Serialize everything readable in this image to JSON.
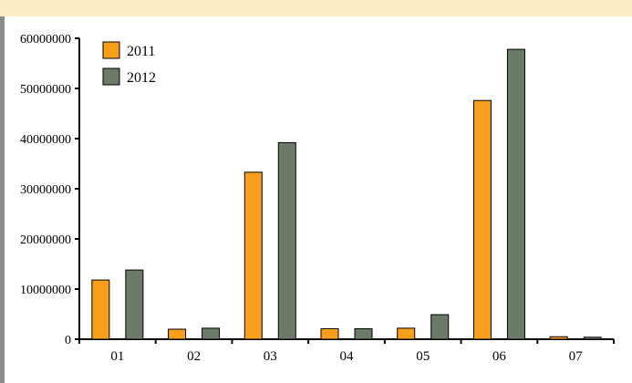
{
  "chart_data": {
    "type": "bar",
    "categories": [
      "01",
      "02",
      "03",
      "04",
      "05",
      "06",
      "07"
    ],
    "series": [
      {
        "name": "2011",
        "color": "#f79f1a",
        "values": [
          11800000,
          2000000,
          33300000,
          2100000,
          2200000,
          47600000,
          500000
        ]
      },
      {
        "name": "2012",
        "color": "#6b7b68",
        "values": [
          13800000,
          2200000,
          39200000,
          2100000,
          4900000,
          57800000,
          400000
        ]
      }
    ],
    "yticks": [
      "0",
      "10000000",
      "20000000",
      "30000000",
      "40000000",
      "50000000",
      "60000000"
    ],
    "ylim": [
      0,
      60000000
    ],
    "legend_position": "top-left",
    "grid": false,
    "title": "",
    "xlabel": "",
    "ylabel": ""
  },
  "colors": {
    "top_band": "#fdecc4",
    "left_bar": "#8c8c8c"
  }
}
